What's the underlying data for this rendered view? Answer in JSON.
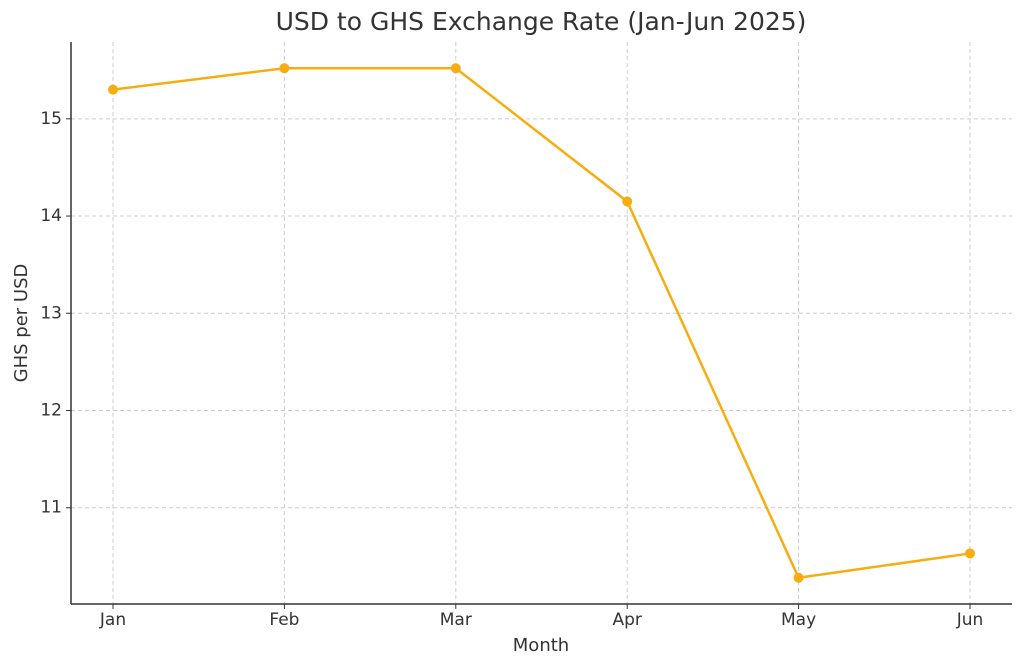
{
  "chart_data": {
    "type": "line",
    "title": "USD to GHS Exchange Rate (Jan-Jun 2025)",
    "x_label": "Month",
    "y_label": "GHS per USD",
    "categories": [
      "Jan",
      "Feb",
      "Mar",
      "Apr",
      "May",
      "Jun"
    ],
    "series": [
      {
        "name": "USD to GHS",
        "color": "#f7ad0f",
        "values": [
          15.3,
          15.52,
          15.52,
          14.15,
          10.28,
          10.53
        ]
      }
    ],
    "ylim": [
      10.01,
      15.79
    ],
    "yticks": [
      11,
      12,
      13,
      14,
      15
    ],
    "grid": true
  }
}
